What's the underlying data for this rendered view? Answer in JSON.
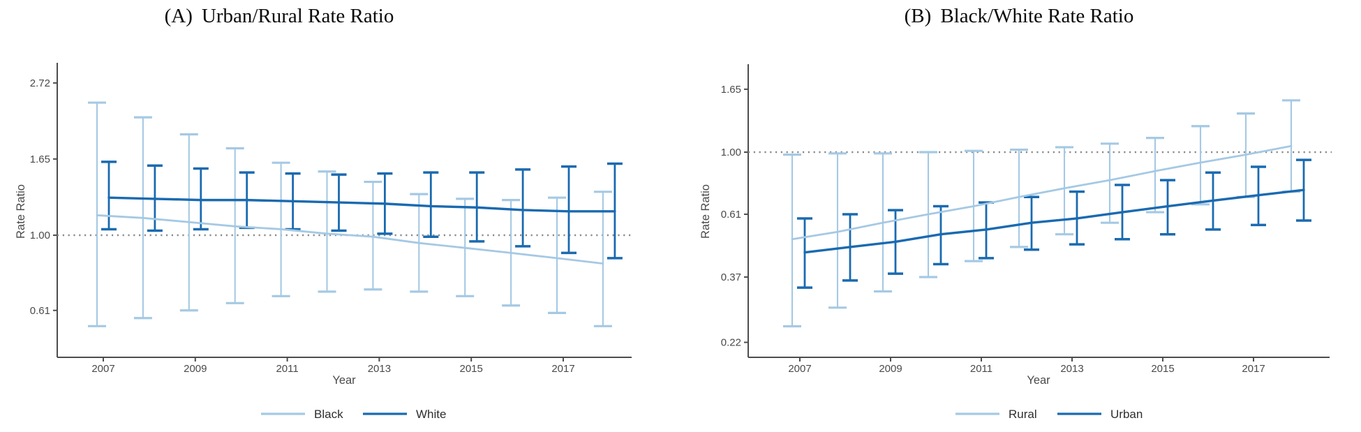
{
  "figure": {
    "background": "#ffffff",
    "axis_color": "#4d4d4d",
    "reference_line_color": "#8a8a8a",
    "text_color": "#4a4a4a"
  },
  "chart_data": [
    {
      "type": "line",
      "panel": "A",
      "title_prefix": "(A)",
      "title": "Urban/Rural Rate Ratio",
      "xlabel": "Year",
      "ylabel": "Rate Ratio",
      "y_scale": "log",
      "y_ticks": [
        2.72,
        1.65,
        1.0,
        0.61
      ],
      "y_tick_labels": [
        "2.72",
        "1.65",
        "1.00",
        "0.61"
      ],
      "reference_line": 1.0,
      "grid": false,
      "legend_position": "bottom-center",
      "x": [
        2007,
        2008,
        2009,
        2010,
        2011,
        2012,
        2013,
        2014,
        2015,
        2016,
        2017,
        2018
      ],
      "x_tick_years": [
        2007,
        2009,
        2011,
        2013,
        2015,
        2017
      ],
      "x_tick_labels": [
        "2007",
        "2009",
        "2011",
        "2013",
        "2015",
        "2017"
      ],
      "series": [
        {
          "name": "Black",
          "color": "#a5c9e4",
          "values": [
            1.14,
            1.12,
            1.09,
            1.06,
            1.04,
            1.01,
            0.99,
            0.95,
            0.92,
            0.89,
            0.86,
            0.83
          ],
          "ci_upper": [
            2.39,
            2.17,
            1.94,
            1.77,
            1.61,
            1.52,
            1.42,
            1.31,
            1.27,
            1.26,
            1.28,
            1.33
          ],
          "ci_lower": [
            0.55,
            0.58,
            0.61,
            0.64,
            0.67,
            0.69,
            0.7,
            0.69,
            0.67,
            0.63,
            0.6,
            0.55
          ]
        },
        {
          "name": "White",
          "color": "#1a6ab0",
          "values": [
            1.28,
            1.27,
            1.26,
            1.26,
            1.25,
            1.24,
            1.23,
            1.21,
            1.2,
            1.18,
            1.17,
            1.17
          ],
          "ci_upper": [
            1.62,
            1.58,
            1.55,
            1.51,
            1.5,
            1.49,
            1.5,
            1.51,
            1.51,
            1.54,
            1.57,
            1.6
          ],
          "ci_lower": [
            1.04,
            1.03,
            1.04,
            1.05,
            1.04,
            1.03,
            1.01,
            0.99,
            0.96,
            0.93,
            0.89,
            0.86
          ]
        }
      ]
    },
    {
      "type": "line",
      "panel": "B",
      "title_prefix": "(B)",
      "title": "Black/White Rate Ratio",
      "xlabel": "Year",
      "ylabel": "Rate Ratio",
      "y_scale": "log",
      "y_ticks": [
        1.65,
        1.0,
        0.61,
        0.37,
        0.22
      ],
      "y_tick_labels": [
        "1.65",
        "1.00",
        "0.61",
        "0.37",
        "0.22"
      ],
      "reference_line": 1.0,
      "grid": false,
      "legend_position": "bottom-center",
      "x": [
        2007,
        2008,
        2009,
        2010,
        2011,
        2012,
        2013,
        2014,
        2015,
        2016,
        2017,
        2018
      ],
      "x_tick_years": [
        2007,
        2009,
        2011,
        2013,
        2015,
        2017
      ],
      "x_tick_labels": [
        "2007",
        "2009",
        "2011",
        "2013",
        "2015",
        "2017"
      ],
      "series": [
        {
          "name": "Rural",
          "color": "#a5c9e4",
          "values": [
            0.5,
            0.53,
            0.57,
            0.61,
            0.65,
            0.7,
            0.75,
            0.8,
            0.86,
            0.92,
            0.98,
            1.05
          ],
          "ci_upper": [
            0.98,
            0.99,
            0.99,
            1.0,
            1.01,
            1.02,
            1.04,
            1.07,
            1.12,
            1.23,
            1.36,
            1.51
          ],
          "ci_lower": [
            0.25,
            0.29,
            0.33,
            0.37,
            0.42,
            0.47,
            0.52,
            0.57,
            0.62,
            0.66,
            0.7,
            0.73
          ]
        },
        {
          "name": "Urban",
          "color": "#1a6ab0",
          "values": [
            0.45,
            0.47,
            0.49,
            0.52,
            0.54,
            0.57,
            0.59,
            0.62,
            0.65,
            0.68,
            0.71,
            0.74
          ],
          "ci_upper": [
            0.59,
            0.61,
            0.63,
            0.65,
            0.67,
            0.7,
            0.73,
            0.77,
            0.8,
            0.85,
            0.89,
            0.94
          ],
          "ci_lower": [
            0.34,
            0.36,
            0.38,
            0.41,
            0.43,
            0.46,
            0.48,
            0.5,
            0.52,
            0.54,
            0.56,
            0.58
          ]
        }
      ]
    }
  ]
}
